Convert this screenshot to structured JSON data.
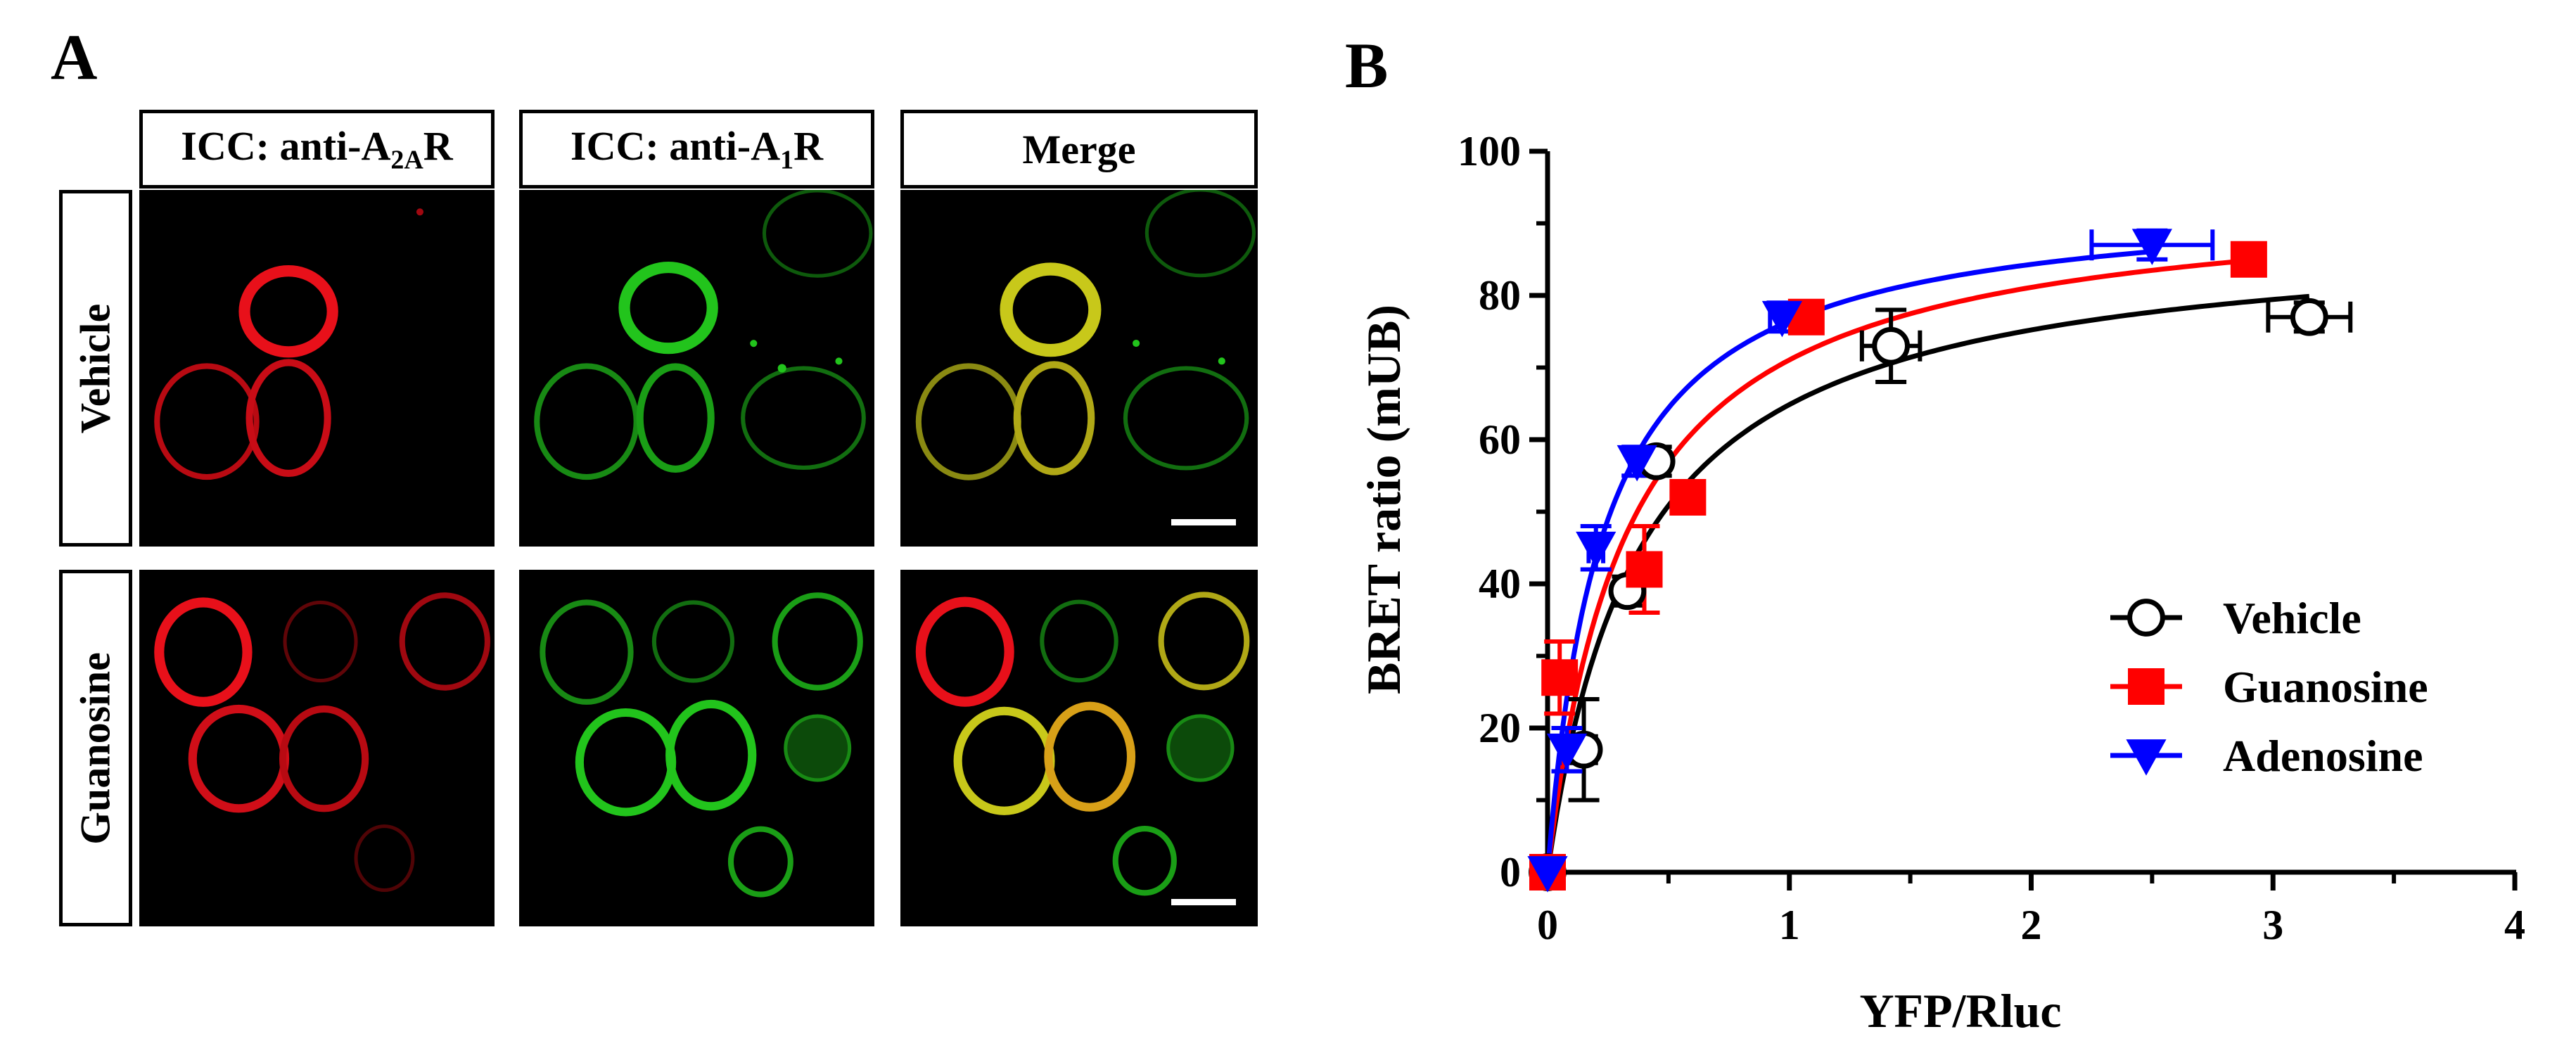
{
  "panel_a": {
    "letter": "A",
    "columns": [
      {
        "prefix": "ICC: anti-A",
        "sub": "2A",
        "suffix": "R"
      },
      {
        "prefix": "ICC: anti-A",
        "sub": "1",
        "suffix": "R"
      },
      {
        "prefix": "Merge",
        "sub": "",
        "suffix": ""
      }
    ],
    "rows": [
      "Vehicle",
      "Guanosine"
    ],
    "channel_colors": {
      "a2a": "#e8101a",
      "a1": "#22c41c",
      "overlap": "#e8c21a"
    }
  },
  "panel_b": {
    "letter": "B"
  },
  "chart_data": {
    "type": "scatter",
    "xlabel": "YFP/Rluc",
    "ylabel": "BRET ratio (mUB)",
    "xlim": [
      0,
      4
    ],
    "ylim": [
      0,
      100
    ],
    "xticks": [
      0,
      1,
      2,
      3,
      4
    ],
    "yticks": [
      0,
      20,
      40,
      60,
      80,
      100
    ],
    "legend_position": "right-middle",
    "grid": false,
    "series": [
      {
        "name": "Vehicle",
        "marker": "circle-open",
        "color": "#000000",
        "points": [
          {
            "x": 0.0,
            "y": 0,
            "xerr": 0.0,
            "yerr": 0
          },
          {
            "x": 0.15,
            "y": 17,
            "xerr": 0.05,
            "yerr": 7
          },
          {
            "x": 0.33,
            "y": 39,
            "xerr": 0.04,
            "yerr": 2
          },
          {
            "x": 0.45,
            "y": 57,
            "xerr": 0.03,
            "yerr": 2
          },
          {
            "x": 1.42,
            "y": 73,
            "xerr": 0.12,
            "yerr": 5
          },
          {
            "x": 3.15,
            "y": 77,
            "xerr": 0.17,
            "yerr": 2
          }
        ],
        "fit": {
          "bmax": 89.5,
          "k50": 0.38
        }
      },
      {
        "name": "Guanosine",
        "marker": "square",
        "color": "#ff0000",
        "points": [
          {
            "x": 0.0,
            "y": 0,
            "xerr": 0.0,
            "yerr": 0
          },
          {
            "x": 0.05,
            "y": 27,
            "xerr": 0.03,
            "yerr": 5
          },
          {
            "x": 0.4,
            "y": 42,
            "xerr": 0.05,
            "yerr": 6
          },
          {
            "x": 0.58,
            "y": 52,
            "xerr": 0.0,
            "yerr": 0
          },
          {
            "x": 1.07,
            "y": 77,
            "xerr": 0.0,
            "yerr": 0
          },
          {
            "x": 2.9,
            "y": 85,
            "xerr": 0.0,
            "yerr": 0
          }
        ],
        "fit": {
          "bmax": 94.5,
          "k50": 0.33
        }
      },
      {
        "name": "Adenosine",
        "marker": "triangle-down",
        "color": "#0000ff",
        "points": [
          {
            "x": 0.0,
            "y": 0,
            "xerr": 0.0,
            "yerr": 0
          },
          {
            "x": 0.08,
            "y": 17,
            "xerr": 0.03,
            "yerr": 3
          },
          {
            "x": 0.2,
            "y": 45,
            "xerr": 0.03,
            "yerr": 3
          },
          {
            "x": 0.37,
            "y": 57,
            "xerr": 0.03,
            "yerr": 2
          },
          {
            "x": 0.97,
            "y": 77,
            "xerr": 0.05,
            "yerr": 2
          },
          {
            "x": 2.5,
            "y": 87,
            "xerr": 0.25,
            "yerr": 2
          }
        ],
        "fit": {
          "bmax": 94,
          "k50": 0.23
        }
      }
    ]
  }
}
